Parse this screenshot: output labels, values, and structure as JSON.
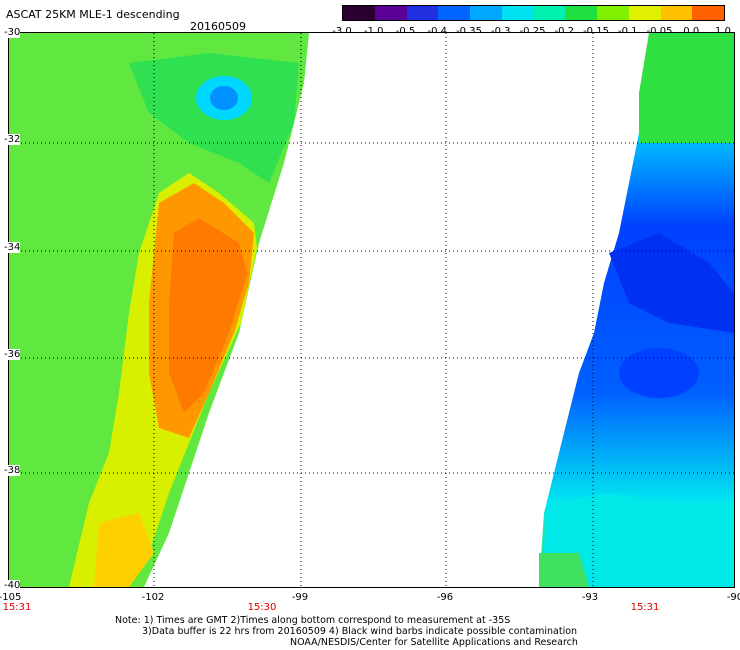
{
  "header": {
    "title": "ASCAT 25KM MLE-1 descending",
    "date": "20160509"
  },
  "colorbar": {
    "labels": [
      "-3.0",
      "-1.0",
      "-0.5",
      "-0.4",
      "-0.35",
      "-0.3",
      "-0.25",
      "-0.2",
      "-0.15",
      "-0.1",
      "-0.05",
      "0.0",
      "1.0"
    ],
    "colors": [
      "#2a0030",
      "#5a0096",
      "#2030e0",
      "#0064ff",
      "#00a8ff",
      "#00e0f0",
      "#00f0b0",
      "#20e040",
      "#80f000",
      "#e0f000",
      "#ffc000",
      "#ff6000"
    ]
  },
  "axes": {
    "lat_labels": [
      "-30",
      "-32",
      "-34",
      "-36",
      "-38",
      "-40"
    ],
    "lon_labels": [
      "-105",
      "-102",
      "-99",
      "-96",
      "-93",
      "-90"
    ],
    "time_labels": [
      "15:31",
      "15:30",
      "15:31"
    ]
  },
  "notes": [
    "Note: 1) Times are GMT 2)Times along bottom correspond to measurement at -35S",
    "3)Data buffer is 22 hrs from 20160509 4) Black wind barbs indicate possible contamination",
    "NOAA/NESDIS/Center for Satellite Applications and Research"
  ],
  "colors": {
    "green": "#40e040",
    "orange": "#ff8000",
    "cyan": "#00f0f0",
    "blue": "#0040ff"
  }
}
